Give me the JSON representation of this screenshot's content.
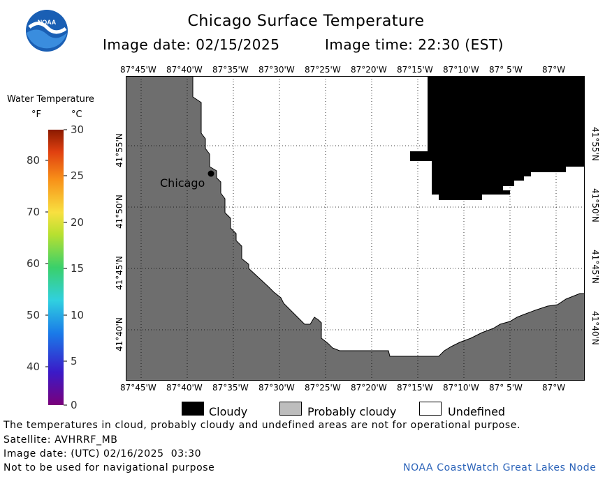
{
  "header": {
    "title": "Chicago Surface Temperature",
    "image_date_label": "Image date: 02/15/2025",
    "image_time_label": "Image time: 22:30 (EST)"
  },
  "colorbar": {
    "title": "Water Temperature",
    "unit_f": "°F",
    "unit_c": "°C",
    "f_ticks": [
      "80",
      "70",
      "60",
      "50",
      "40"
    ],
    "c_ticks": [
      "30",
      "25",
      "20",
      "15",
      "10",
      "5",
      "0"
    ]
  },
  "map": {
    "lon_labels": [
      "87°45'W",
      "87°40'W",
      "87°35'W",
      "87°30'W",
      "87°25'W",
      "87°20'W",
      "87°15'W",
      "87°10'W",
      "87° 5'W",
      "87°W"
    ],
    "lat_labels": [
      "41°55'N",
      "41°50'N",
      "41°45'N",
      "41°40'N"
    ],
    "city_label": "Chicago",
    "land_color": "#6e6e6e",
    "cloud_color": "#000000"
  },
  "legend": {
    "cloudy": "Cloudy",
    "probably_cloudy": "Probably cloudy",
    "undefined": "Undefined"
  },
  "footer": {
    "disclaimer": "The temperatures in cloud, probably cloudy and undefined areas are not for operational purpose.",
    "satellite": "Satellite: AVHRRF_MB",
    "utc_date": "Image date: (UTC) 02/16/2025  03:30",
    "nav_warning": "Not to be used for navigational purpose",
    "credit": "NOAA CoastWatch Great Lakes Node"
  },
  "logo": {
    "text": "NOAA"
  }
}
